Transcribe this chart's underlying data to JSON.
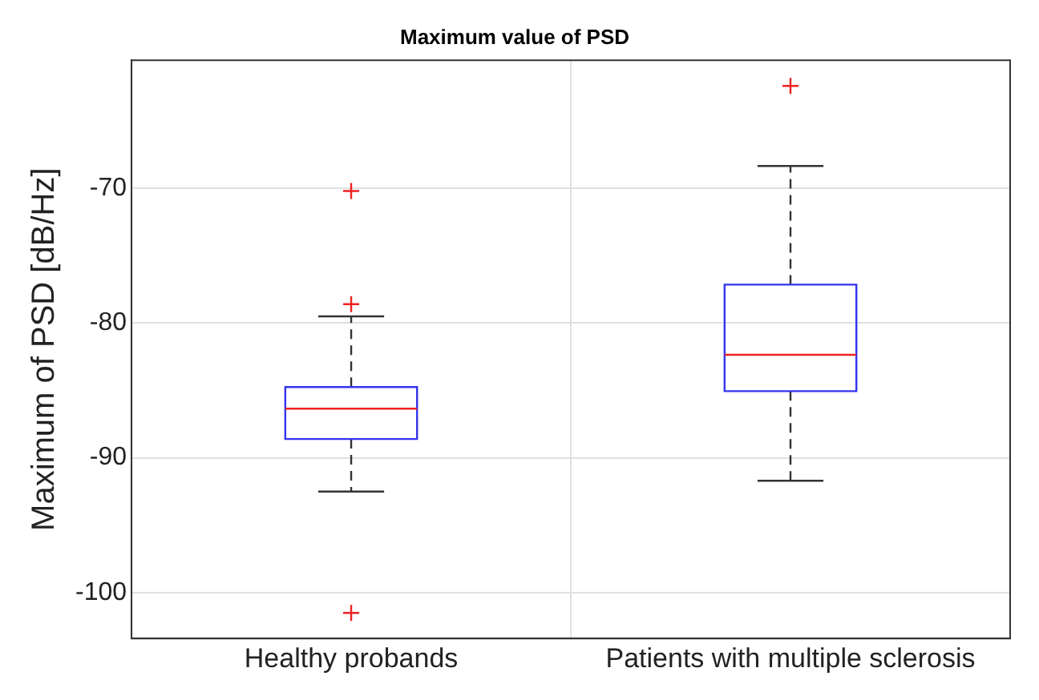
{
  "chart_data": {
    "type": "box",
    "title": "Maximum value of PSD",
    "ylabel": "Maximum of PSD [dB/Hz]",
    "categories": [
      "Healthy probands",
      "Patients with multiple sclerosis"
    ],
    "boxes": [
      {
        "low": -92.5,
        "q1": -88.6,
        "median": -86.35,
        "q3": -84.75,
        "high": -79.5,
        "outliers": [
          -78.6,
          -70.2,
          -101.5
        ]
      },
      {
        "low": -91.7,
        "q1": -85.05,
        "median": -82.35,
        "q3": -77.15,
        "high": -68.35,
        "outliers": [
          -62.4
        ]
      }
    ],
    "ylim": [
      -103.4,
      -60.5
    ],
    "yticks": [
      -100,
      -90,
      -80,
      -70
    ],
    "grid": true
  }
}
